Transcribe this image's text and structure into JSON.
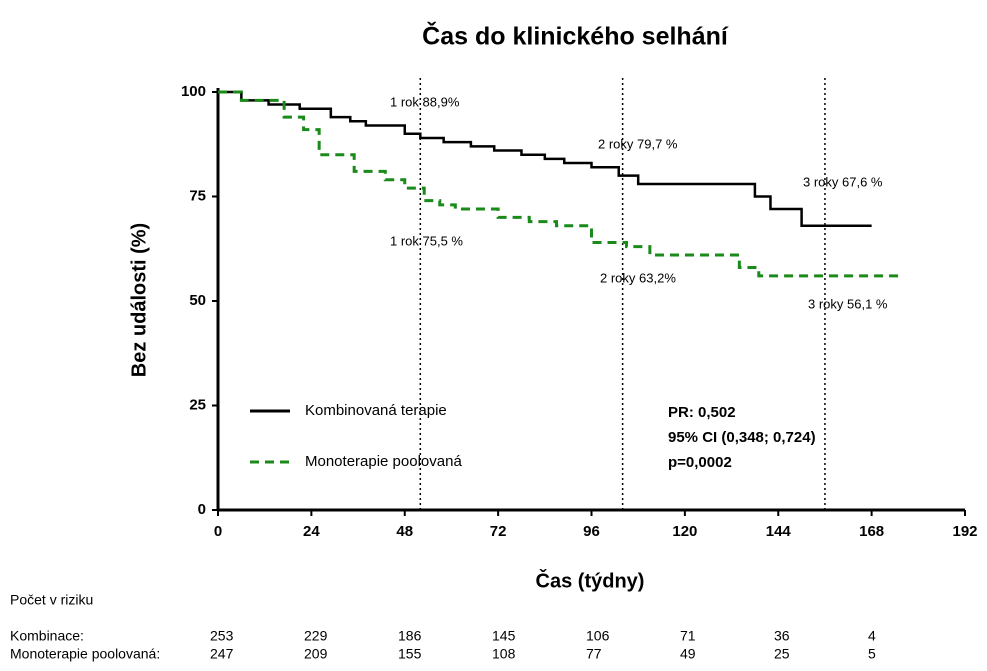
{
  "chart_data": {
    "type": "line",
    "step": true,
    "title": "Čas do klinického selhání",
    "x_label": "Čas (týdny)",
    "y_label": "Bez události (%)",
    "xlim": [
      0,
      192
    ],
    "xticks": [
      0,
      24,
      48,
      72,
      96,
      120,
      144,
      168,
      192
    ],
    "ylim": [
      0,
      100
    ],
    "yticks": [
      0,
      25,
      50,
      75,
      100
    ],
    "reference_lines": [
      52,
      104,
      156
    ],
    "series": [
      {
        "name": "Kombinovaná terapie",
        "color": "#000000",
        "line_style": "solid",
        "x": [
          0,
          6,
          13,
          21,
          29,
          34,
          38,
          48,
          52,
          58,
          65,
          71,
          78,
          84,
          89,
          96,
          103,
          108,
          138,
          142,
          150,
          168
        ],
        "values": [
          100,
          98,
          97,
          96,
          94,
          93,
          92,
          90,
          89,
          88,
          87,
          86,
          85,
          84,
          83,
          82,
          80,
          78,
          75,
          72,
          68,
          68
        ]
      },
      {
        "name": "Monoterapie poolovaná",
        "color": "#1a8a1a",
        "line_style": "dashed",
        "x": [
          0,
          6,
          17,
          22,
          26,
          35,
          43,
          48,
          53,
          57,
          61,
          72,
          80,
          87,
          96,
          105,
          111,
          134,
          139,
          175
        ],
        "values": [
          100,
          98,
          94,
          91,
          85,
          81,
          79,
          77,
          74,
          73,
          72,
          70,
          69,
          68,
          64,
          63,
          61,
          58,
          56,
          56
        ]
      }
    ],
    "annotations": [
      "1 rok 88,9%",
      "2 roky 79,7 %",
      "3 roky 67,6 %",
      "1 rok 75,5 %",
      "2 roky 63,2%",
      "3 roky 56,1 %"
    ],
    "stats": [
      "PR: 0,502",
      "95% CI (0,348; 0,724)",
      "p=0,0002"
    ],
    "risk_table": {
      "title": "Počet v riziku",
      "rows": [
        {
          "label": "Kombinace:",
          "values": [
            253,
            229,
            186,
            145,
            106,
            71,
            36,
            4
          ]
        },
        {
          "label": "Monoterapie poolovaná:",
          "values": [
            247,
            209,
            155,
            108,
            77,
            49,
            25,
            5
          ]
        }
      ]
    }
  }
}
